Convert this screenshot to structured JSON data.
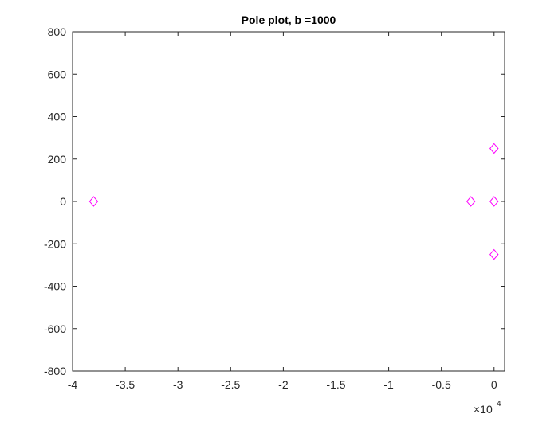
{
  "chart_data": {
    "type": "scatter",
    "title": "Pole plot, b =1000",
    "xlabel": "",
    "ylabel": "",
    "xlim": [
      -4,
      0.1
    ],
    "ylim": [
      -800,
      800
    ],
    "x_scale_exponent_label": {
      "base": "×10",
      "exponent": "4"
    },
    "x_ticks": [
      -4,
      -3.5,
      -3,
      -2.5,
      -2,
      -1.5,
      -1,
      -0.5,
      0
    ],
    "x_tick_labels": [
      "-4",
      "-3.5",
      "-3",
      "-2.5",
      "-2",
      "-1.5",
      "-1",
      "-0.5",
      "0"
    ],
    "y_ticks": [
      -800,
      -600,
      -400,
      -200,
      0,
      200,
      400,
      600,
      800
    ],
    "y_tick_labels": [
      "-800",
      "-600",
      "-400",
      "-200",
      "0",
      "200",
      "400",
      "600",
      "800"
    ],
    "grid": false,
    "marker": "diamond",
    "marker_color": "#ff00ff",
    "series": [
      {
        "points": [
          {
            "x": -3.8,
            "y": 0
          },
          {
            "x": -0.22,
            "y": 0
          },
          {
            "x": 0,
            "y": 250
          },
          {
            "x": 0,
            "y": 0
          },
          {
            "x": 0,
            "y": -250
          }
        ]
      }
    ]
  }
}
